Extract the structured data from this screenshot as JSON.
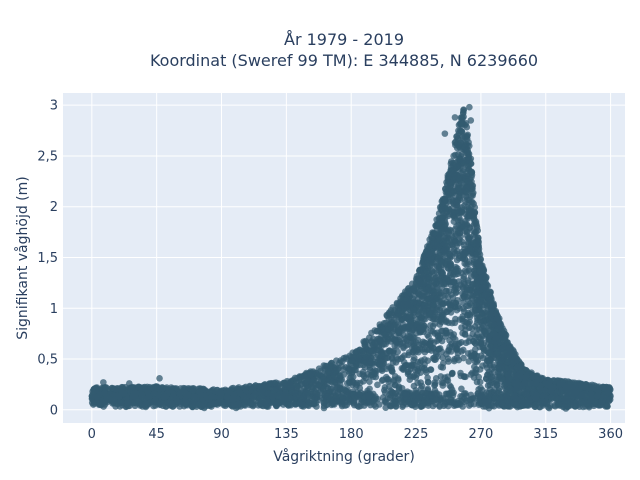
{
  "chart_data": {
    "type": "scatter",
    "title_line1": "År 1979 - 2019",
    "title_line2": "Koordinat (Sweref 99 TM): E 344885, N 6239660",
    "xlabel": "Vågriktning (grader)",
    "ylabel": "Signifikant våghöjd (m)",
    "xlim": [
      -20,
      370
    ],
    "ylim": [
      -0.13,
      3.12
    ],
    "x_ticks": [
      0,
      45,
      90,
      135,
      180,
      225,
      270,
      315,
      360
    ],
    "x_tick_labels": [
      "0",
      "45",
      "90",
      "135",
      "180",
      "225",
      "270",
      "315",
      "360"
    ],
    "y_ticks": [
      0,
      0.5,
      1,
      1.5,
      2,
      2.5,
      3
    ],
    "y_tick_labels": [
      "0",
      "0,5",
      "1",
      "1,5",
      "2",
      "2,5",
      "3"
    ],
    "grid": true,
    "marker_color": "#335b70",
    "plot_background": "#e5ecf6",
    "envelope": {
      "x": [
        0,
        45,
        90,
        135,
        180,
        200,
        225,
        240,
        250,
        255,
        258,
        262,
        265,
        270,
        280,
        290,
        300,
        315,
        330,
        345,
        360
      ],
      "y_max": [
        0.22,
        0.23,
        0.2,
        0.28,
        0.55,
        0.85,
        1.3,
        1.9,
        2.5,
        2.85,
        2.97,
        2.7,
        2.1,
        1.5,
        1.0,
        0.65,
        0.4,
        0.3,
        0.28,
        0.25,
        0.22
      ]
    },
    "outliers": [
      {
        "x": 47,
        "y": 0.31
      },
      {
        "x": 26,
        "y": 0.26
      },
      {
        "x": 8,
        "y": 0.27
      },
      {
        "x": 262,
        "y": 2.98
      },
      {
        "x": 258,
        "y": 2.95
      },
      {
        "x": 252,
        "y": 2.88
      },
      {
        "x": 245,
        "y": 2.72
      },
      {
        "x": 263,
        "y": 2.85
      }
    ]
  }
}
